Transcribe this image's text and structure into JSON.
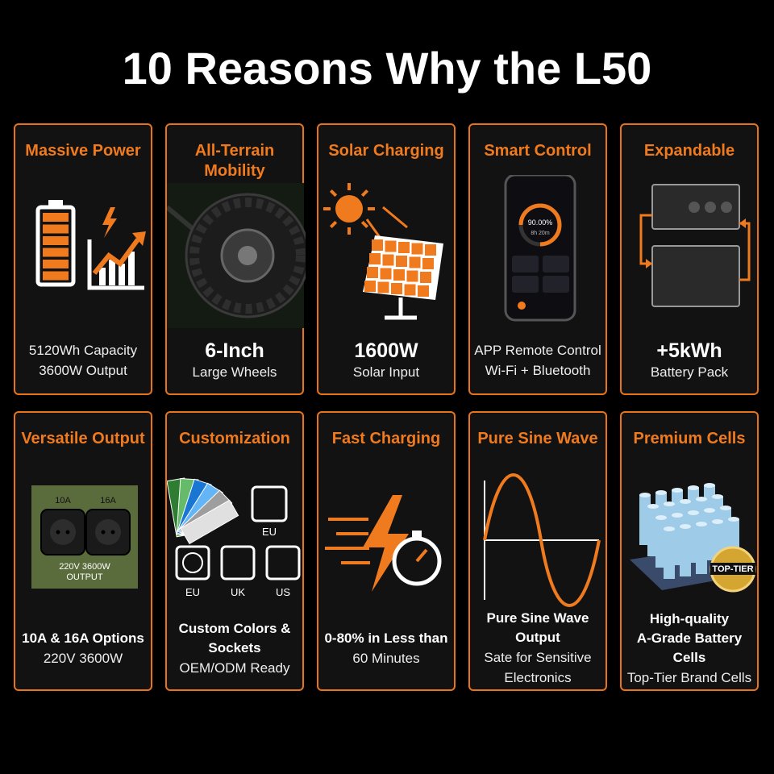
{
  "title": "10 Reasons Why the L50",
  "cards": [
    {
      "heading": "Massive Power",
      "icon_labels": [],
      "lines": [
        {
          "text": "5120Wh Capacity",
          "style": "regular"
        },
        {
          "text": "3600W Output",
          "style": "regular"
        }
      ]
    },
    {
      "heading": "All-Terrain Mobility",
      "icon_labels": [],
      "lines": [
        {
          "text": "6-Inch",
          "style": "large"
        },
        {
          "text": "Large Wheels",
          "style": "regular"
        }
      ]
    },
    {
      "heading": "Solar Charging",
      "icon_labels": [],
      "lines": [
        {
          "text": "1600W",
          "style": "large"
        },
        {
          "text": "Solar Input",
          "style": "regular"
        }
      ]
    },
    {
      "heading": "Smart Control",
      "icon_labels": [
        "90.00%",
        "8h 20m"
      ],
      "lines": [
        {
          "text": "APP Remote Control",
          "style": "regular"
        },
        {
          "text": "Wi-Fi + Bluetooth",
          "style": "regular"
        }
      ]
    },
    {
      "heading": "Expandable",
      "icon_labels": [],
      "lines": [
        {
          "text": "+5kWh",
          "style": "large"
        },
        {
          "text": "Battery Pack",
          "style": "regular"
        }
      ]
    },
    {
      "heading": "Versatile Output",
      "icon_labels": [
        "10A",
        "16A",
        "220V 3600W",
        "OUTPUT"
      ],
      "lines": [
        {
          "text": "10A & 16A Options",
          "style": "bold"
        },
        {
          "text": "220V 3600W",
          "style": "regular"
        }
      ]
    },
    {
      "heading": "Customization",
      "icon_labels": [
        "EU",
        "EU",
        "UK",
        "US"
      ],
      "lines": [
        {
          "text": "Custom Colors &",
          "style": "bold"
        },
        {
          "text": "Sockets",
          "style": "bold"
        },
        {
          "text": "OEM/ODM Ready",
          "style": "regular"
        }
      ]
    },
    {
      "heading": "Fast Charging",
      "icon_labels": [],
      "lines": [
        {
          "text": "0-80% in Less than",
          "style": "bold"
        },
        {
          "text": "60 Minutes",
          "style": "regular"
        }
      ]
    },
    {
      "heading": "Pure Sine Wave",
      "icon_labels": [],
      "lines": [
        {
          "text": "Pure Sine Wave",
          "style": "bold"
        },
        {
          "text": "Output",
          "style": "bold"
        },
        {
          "text": "Sate for Sensitive",
          "style": "regular"
        },
        {
          "text": "Electronics",
          "style": "regular"
        }
      ]
    },
    {
      "heading": "Premium Cells",
      "icon_labels": [
        "TOP-TIER"
      ],
      "lines": [
        {
          "text": "High-quality",
          "style": "bold"
        },
        {
          "text": "A-Grade Battery Cells",
          "style": "bold"
        },
        {
          "text": "Top-Tier Brand Cells",
          "style": "regular"
        }
      ]
    }
  ]
}
